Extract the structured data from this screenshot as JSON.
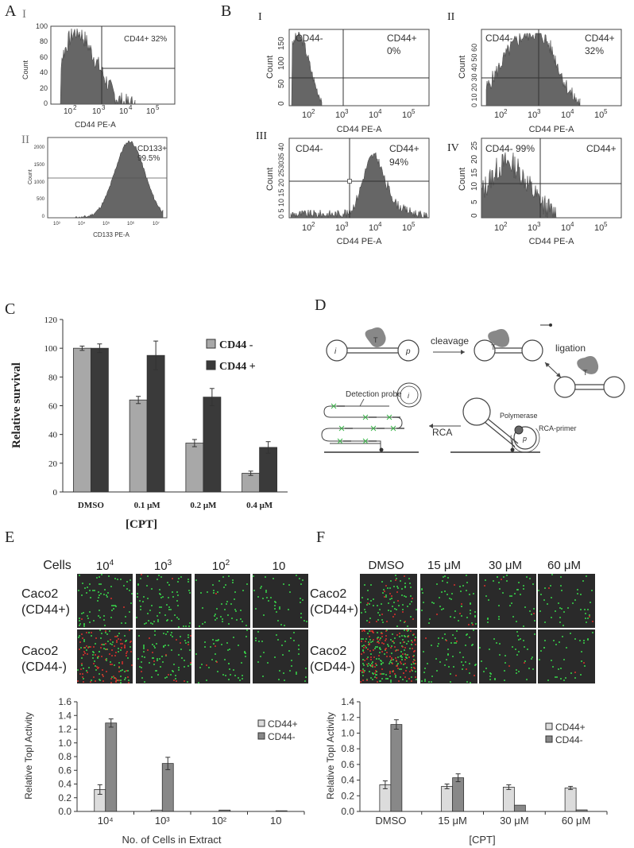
{
  "panel_labels": {
    "A": "A",
    "B": "B",
    "C": "C",
    "D": "D",
    "E": "E",
    "F": "F"
  },
  "roman": {
    "I": "I",
    "II": "II",
    "III": "III",
    "IV": "IV"
  },
  "flow_A": [
    {
      "id": "A-I",
      "xlabel": "CD44 PE-A",
      "ylabel": "Count",
      "yticks": [
        "0",
        "20",
        "40",
        "60",
        "80",
        "100"
      ],
      "xticks": [
        "10",
        "2",
        "10",
        "3",
        "10",
        "4",
        "10",
        "5"
      ],
      "annotation": "CD44+ 32%"
    },
    {
      "id": "A-II",
      "xlabel": "CD133 PE-A",
      "ylabel": "Count",
      "yticks": [
        "0",
        "500",
        "1000",
        "1500",
        "2000"
      ],
      "xticks": [
        "10³",
        "10⁴",
        "10⁵",
        "10⁶",
        "10⁷"
      ],
      "annotation1": "CD133+",
      "annotation2": "99.5%"
    }
  ],
  "flow_B": {
    "xlabel": "CD44 PE-A",
    "ylabel": "Count",
    "I": {
      "left": "CD44-",
      "right1": "CD44+",
      "right2": "0%",
      "yticks": [
        "0",
        "50",
        "100",
        "150"
      ]
    },
    "II": {
      "left": "CD44-",
      "right1": "CD44+",
      "right2": "32%",
      "yticks": [
        "0",
        "10",
        "20",
        "30",
        "40",
        "50",
        "60"
      ],
      "ytick_str": "0 10 20 30 40 50 60"
    },
    "III": {
      "left": "CD44-",
      "right1": "CD44+",
      "right2": "94%",
      "ytick_str": "0 5 10 15 20 253035 40"
    },
    "IV": {
      "left": "CD44- 99%",
      "right1": "CD44+",
      "yticks": [
        "0",
        "5",
        "10",
        "15",
        "20",
        "25"
      ]
    }
  },
  "chart_data": [
    {
      "type": "bar",
      "title": "",
      "xlabel": "[CPT]",
      "ylabel": "Relative survival",
      "ylim": [
        0,
        120
      ],
      "yticks": [
        0,
        20,
        40,
        60,
        80,
        100,
        120
      ],
      "categories": [
        "DMSO",
        "0.1 μM",
        "0.2 μM",
        "0.4 μM"
      ],
      "series": [
        {
          "name": "CD44 -",
          "values": [
            100,
            64,
            34,
            13
          ],
          "errors": [
            1.5,
            2.5,
            2.5,
            1.5
          ],
          "color": "#a8a8a8"
        },
        {
          "name": "CD44 +",
          "values": [
            100,
            95,
            66,
            31
          ],
          "errors": [
            3,
            10,
            6,
            4
          ],
          "color": "#3a3a3a"
        }
      ]
    },
    {
      "type": "bar",
      "xlabel": "No. of Cells in Extract",
      "ylabel": "Relative TopI Activity",
      "ylim": [
        0,
        1.6
      ],
      "yticks": [
        "0.0",
        "0.2",
        "0.4",
        "0.6",
        "0.8",
        "1.0",
        "1.2",
        "1.4",
        "1.6"
      ],
      "categories": [
        "10⁴",
        "10³",
        "10²",
        "10"
      ],
      "series": [
        {
          "name": "CD44+",
          "values": [
            0.32,
            0.02,
            0.0,
            0.0
          ],
          "errors": [
            0.07,
            0.0,
            0.0,
            0.0
          ],
          "color": "#dcdcdc"
        },
        {
          "name": "CD44-",
          "values": [
            1.29,
            0.7,
            0.02,
            0.01
          ],
          "errors": [
            0.06,
            0.09,
            0.0,
            0.0
          ],
          "color": "#888888"
        }
      ]
    },
    {
      "type": "bar",
      "xlabel": "[CPT]",
      "ylabel": "Relative TopI Activity",
      "ylim": [
        0,
        1.4
      ],
      "yticks": [
        "0.0",
        "0.2",
        "0.4",
        "0.6",
        "0.8",
        "1.0",
        "1.2",
        "1.4"
      ],
      "categories": [
        "DMSO",
        "15 μM",
        "30 μM",
        "60 μM"
      ],
      "series": [
        {
          "name": "CD44+",
          "values": [
            0.34,
            0.32,
            0.31,
            0.3
          ],
          "errors": [
            0.05,
            0.03,
            0.03,
            0.02
          ],
          "color": "#dcdcdc"
        },
        {
          "name": "CD44-",
          "values": [
            1.11,
            0.43,
            0.08,
            0.02
          ],
          "errors": [
            0.06,
            0.05,
            0.0,
            0.0
          ],
          "color": "#888888"
        }
      ]
    }
  ],
  "diagram_D": {
    "cleavage": "cleavage",
    "ligation": "ligation",
    "RCA": "RCA",
    "detection_probe": "Detection probe",
    "polymerase": "Polymerase",
    "rca_primer": "RCA-primer",
    "i": "i",
    "p": "p",
    "T": "T"
  },
  "micro_E": {
    "corner": "Cells",
    "cols": [
      "10",
      "10",
      "10",
      "10"
    ],
    "col_exps": [
      "4",
      "3",
      "2",
      ""
    ],
    "rows": [
      {
        "l1": "Caco2",
        "l2": "(CD44+)"
      },
      {
        "l1": "Caco2",
        "l2": "(CD44-)"
      }
    ]
  },
  "micro_F": {
    "cols": [
      "DMSO",
      "15 μM",
      "30 μM",
      "60 μM"
    ],
    "rows": [
      {
        "l1": "Caco2",
        "l2": "(CD44+)"
      },
      {
        "l1": "Caco2",
        "l2": "(CD44-)"
      }
    ]
  },
  "colors": {
    "hist": "#666666",
    "dark_bar": "#3a3a3a",
    "light_bar": "#a8a8a8",
    "green": "#38d64a",
    "red": "#d8322c"
  }
}
